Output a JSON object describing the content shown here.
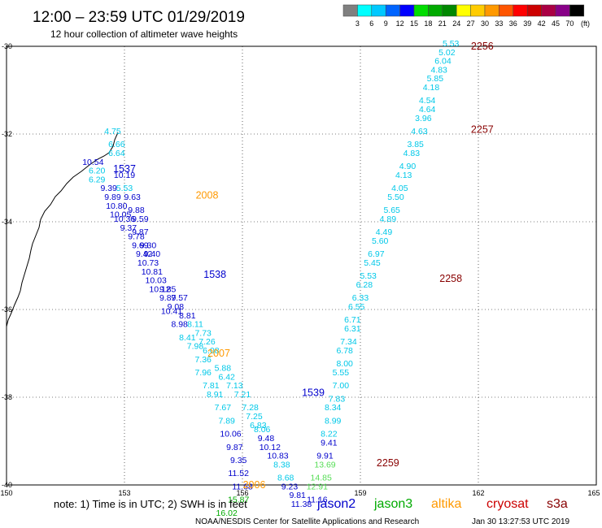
{
  "header": {
    "title": "12:00 – 23:59 UTC 01/29/2019",
    "subtitle": "12 hour collection of altimeter wave heights"
  },
  "colorbar": {
    "unit": "(ft)",
    "ticks": [
      "3",
      "6",
      "9",
      "12",
      "15",
      "18",
      "21",
      "24",
      "27",
      "30",
      "33",
      "36",
      "39",
      "42",
      "45",
      "70"
    ],
    "colors": [
      "#808080",
      "#00ffff",
      "#00c8ff",
      "#0064ff",
      "#0000ff",
      "#00dd00",
      "#00aa00",
      "#008800",
      "#ffff00",
      "#ffcc00",
      "#ff9900",
      "#ff5500",
      "#ff0000",
      "#cc0000",
      "#aa0044",
      "#880088",
      "#000000"
    ]
  },
  "axes": {
    "lat_labels": [
      "-30",
      "-32",
      "-34",
      "-36",
      "-38",
      "-40"
    ],
    "lon_labels": [
      "150",
      "153",
      "156",
      "159",
      "162",
      "165"
    ]
  },
  "note": "note: 1) Time is in UTC; 2) SWH is in feet",
  "legend": [
    {
      "name": "jason2",
      "color": "#0000cc"
    },
    {
      "name": "jason3",
      "color": "#00aa00"
    },
    {
      "name": "altika",
      "color": "#ff9900"
    },
    {
      "name": "cryosat",
      "color": "#cc0000"
    },
    {
      "name": "s3a",
      "color": "#880000"
    }
  ],
  "footer": {
    "credit": "NOAA/NESDIS Center for Satellite Applications and Research",
    "timestamp": "Jan 30 13:27:53 UTC 2019"
  },
  "pass_labels": [
    {
      "text": "2256",
      "lon": 162.1,
      "lat": -30.0,
      "sat": "s3a"
    },
    {
      "text": "2257",
      "lon": 162.1,
      "lat": -31.9,
      "sat": "s3a"
    },
    {
      "text": "2258",
      "lon": 161.3,
      "lat": -35.3,
      "sat": "s3a"
    },
    {
      "text": "2259",
      "lon": 159.7,
      "lat": -39.5,
      "sat": "s3a"
    },
    {
      "text": "1537",
      "lon": 153.0,
      "lat": -32.8,
      "sat": "jason2"
    },
    {
      "text": "1538",
      "lon": 155.3,
      "lat": -35.2,
      "sat": "jason2"
    },
    {
      "text": "1539",
      "lon": 157.8,
      "lat": -37.9,
      "sat": "jason2"
    },
    {
      "text": "2008",
      "lon": 155.1,
      "lat": -33.4,
      "sat": "altika"
    },
    {
      "text": "2007",
      "lon": 155.4,
      "lat": -37.0,
      "sat": "altika"
    },
    {
      "text": "2006",
      "lon": 156.3,
      "lat": -40.0,
      "sat": "altika"
    }
  ],
  "tracks": [
    {
      "name": "s3a-east",
      "points": [
        {
          "v": "5.53",
          "lat": -30.0,
          "lon": 161.3,
          "color": "#00c8e8"
        },
        {
          "v": "5.02",
          "lat": -30.2,
          "lon": 161.2,
          "color": "#00c8e8"
        },
        {
          "v": "6.04",
          "lat": -30.4,
          "lon": 161.1,
          "color": "#00c8e8"
        },
        {
          "v": "4.83",
          "lat": -30.6,
          "lon": 161.0,
          "color": "#00c8e8"
        },
        {
          "v": "5.85",
          "lat": -30.8,
          "lon": 160.9,
          "color": "#00c8e8"
        },
        {
          "v": "4.18",
          "lat": -31.0,
          "lon": 160.8,
          "color": "#00c8e8"
        },
        {
          "v": "4.54",
          "lat": -31.3,
          "lon": 160.7,
          "color": "#00c8e8"
        },
        {
          "v": "4.64",
          "lat": -31.5,
          "lon": 160.7,
          "color": "#00c8e8"
        },
        {
          "v": "3.96",
          "lat": -31.7,
          "lon": 160.6,
          "color": "#00c8e8"
        },
        {
          "v": "4.63",
          "lat": -32.0,
          "lon": 160.5,
          "color": "#00c8e8"
        },
        {
          "v": "3.85",
          "lat": -32.3,
          "lon": 160.4,
          "color": "#00c8e8"
        },
        {
          "v": "4.83",
          "lat": -32.5,
          "lon": 160.3,
          "color": "#00c8e8"
        },
        {
          "v": "4.90",
          "lat": -32.8,
          "lon": 160.2,
          "color": "#00c8e8"
        },
        {
          "v": "4.13",
          "lat": -33.0,
          "lon": 160.1,
          "color": "#00c8e8"
        },
        {
          "v": "4.05",
          "lat": -33.3,
          "lon": 160.0,
          "color": "#00c8e8"
        },
        {
          "v": "5.50",
          "lat": -33.5,
          "lon": 159.9,
          "color": "#00c8e8"
        },
        {
          "v": "5.65",
          "lat": -33.8,
          "lon": 159.8,
          "color": "#00c8e8"
        },
        {
          "v": "4.89",
          "lat": -34.0,
          "lon": 159.7,
          "color": "#00c8e8"
        },
        {
          "v": "4.49",
          "lat": -34.3,
          "lon": 159.6,
          "color": "#00c8e8"
        },
        {
          "v": "5.60",
          "lat": -34.5,
          "lon": 159.5,
          "color": "#00c8e8"
        },
        {
          "v": "6.97",
          "lat": -34.8,
          "lon": 159.4,
          "color": "#00c8e8"
        },
        {
          "v": "5.45",
          "lat": -35.0,
          "lon": 159.3,
          "color": "#00c8e8"
        },
        {
          "v": "5.53",
          "lat": -35.3,
          "lon": 159.2,
          "color": "#00c8e8"
        },
        {
          "v": "6.28",
          "lat": -35.5,
          "lon": 159.1,
          "color": "#00c8e8"
        },
        {
          "v": "6.33",
          "lat": -35.8,
          "lon": 159.0,
          "color": "#00c8e8"
        },
        {
          "v": "6.55",
          "lat": -36.0,
          "lon": 158.9,
          "color": "#00c8e8"
        },
        {
          "v": "6.71",
          "lat": -36.3,
          "lon": 158.8,
          "color": "#00c8e8"
        },
        {
          "v": "6.31",
          "lat": -36.5,
          "lon": 158.8,
          "color": "#00c8e8"
        },
        {
          "v": "7.34",
          "lat": -36.8,
          "lon": 158.7,
          "color": "#00c8e8"
        },
        {
          "v": "6.78",
          "lat": -37.0,
          "lon": 158.6,
          "color": "#00c8e8"
        },
        {
          "v": "8.00",
          "lat": -37.3,
          "lon": 158.6,
          "color": "#00c8e8"
        },
        {
          "v": "5.55",
          "lat": -37.5,
          "lon": 158.5,
          "color": "#00c8e8"
        },
        {
          "v": "7.00",
          "lat": -37.8,
          "lon": 158.5,
          "color": "#00c8e8"
        },
        {
          "v": "7.83",
          "lat": -38.1,
          "lon": 158.4,
          "color": "#00c8e8"
        },
        {
          "v": "8.34",
          "lat": -38.3,
          "lon": 158.3,
          "color": "#00c8e8"
        },
        {
          "v": "8.99",
          "lat": -38.6,
          "lon": 158.3,
          "color": "#00c8e8"
        },
        {
          "v": "8.22",
          "lat": -38.9,
          "lon": 158.2,
          "color": "#00c8e8"
        },
        {
          "v": "9.41",
          "lat": -39.1,
          "lon": 158.2,
          "color": "#0000cc"
        },
        {
          "v": "9.91",
          "lat": -39.4,
          "lon": 158.1,
          "color": "#0000cc"
        },
        {
          "v": "13.69",
          "lat": -39.6,
          "lon": 158.1,
          "color": "#55dd55"
        },
        {
          "v": "14.85",
          "lat": -39.9,
          "lon": 158.0,
          "color": "#55dd55"
        },
        {
          "v": "12.91",
          "lat": -40.1,
          "lon": 157.9,
          "color": "#55dd55"
        },
        {
          "v": "11.16",
          "lat": -40.4,
          "lon": 157.9,
          "color": "#0000cc"
        }
      ]
    },
    {
      "name": "jason2-west",
      "points": [
        {
          "v": "4.75",
          "lat": -32.0,
          "lon": 152.7,
          "color": "#00c8e8"
        },
        {
          "v": "6.66",
          "lat": -32.3,
          "lon": 152.8,
          "color": "#00c8e8"
        },
        {
          "v": "6.64",
          "lat": -32.5,
          "lon": 152.8,
          "color": "#00c8e8"
        },
        {
          "v": "10.54",
          "lat": -32.7,
          "lon": 152.2,
          "color": "#0000cc"
        },
        {
          "v": "6.20",
          "lat": -32.9,
          "lon": 152.3,
          "color": "#00c8e8"
        },
        {
          "v": "10.19",
          "lat": -33.0,
          "lon": 153.0,
          "color": "#0000cc"
        },
        {
          "v": "6.29",
          "lat": -33.1,
          "lon": 152.3,
          "color": "#00c8e8"
        },
        {
          "v": "9.39",
          "lat": -33.3,
          "lon": 152.6,
          "color": "#0000cc"
        },
        {
          "v": "5.53",
          "lat": -33.3,
          "lon": 153.0,
          "color": "#00c8e8"
        },
        {
          "v": "9.89",
          "lat": -33.5,
          "lon": 152.7,
          "color": "#0000cc"
        },
        {
          "v": "9.63",
          "lat": -33.5,
          "lon": 153.2,
          "color": "#0000cc"
        },
        {
          "v": "10.80",
          "lat": -33.7,
          "lon": 152.8,
          "color": "#0000cc"
        },
        {
          "v": "9.88",
          "lat": -33.8,
          "lon": 153.3,
          "color": "#0000cc"
        },
        {
          "v": "10.05",
          "lat": -33.9,
          "lon": 152.9,
          "color": "#0000cc"
        },
        {
          "v": "10.36",
          "lat": -34.0,
          "lon": 153.0,
          "color": "#0000cc"
        },
        {
          "v": "9.59",
          "lat": -34.0,
          "lon": 153.4,
          "color": "#0000cc"
        },
        {
          "v": "9.37",
          "lat": -34.2,
          "lon": 153.1,
          "color": "#0000cc"
        },
        {
          "v": "9.87",
          "lat": -34.3,
          "lon": 153.4,
          "color": "#0000cc"
        },
        {
          "v": "9.78",
          "lat": -34.4,
          "lon": 153.3,
          "color": "#0000cc"
        },
        {
          "v": "9.69",
          "lat": -34.6,
          "lon": 153.4,
          "color": "#0000cc"
        },
        {
          "v": "9.30",
          "lat": -34.6,
          "lon": 153.6,
          "color": "#0000cc"
        },
        {
          "v": "9.42",
          "lat": -34.8,
          "lon": 153.5,
          "color": "#0000cc"
        },
        {
          "v": "9.40",
          "lat": -34.8,
          "lon": 153.7,
          "color": "#0000cc"
        },
        {
          "v": "10.73",
          "lat": -35.0,
          "lon": 153.6,
          "color": "#0000cc"
        },
        {
          "v": "10.81",
          "lat": -35.2,
          "lon": 153.7,
          "color": "#0000cc"
        },
        {
          "v": "10.03",
          "lat": -35.4,
          "lon": 153.8,
          "color": "#0000cc"
        },
        {
          "v": "10.12",
          "lat": -35.6,
          "lon": 153.9,
          "color": "#0000cc"
        },
        {
          "v": "9.85",
          "lat": -35.6,
          "lon": 154.1,
          "color": "#0000cc"
        },
        {
          "v": "9.87",
          "lat": -35.8,
          "lon": 154.1,
          "color": "#0000cc"
        },
        {
          "v": "9.57",
          "lat": -35.8,
          "lon": 154.4,
          "color": "#0000cc"
        },
        {
          "v": "9.08",
          "lat": -36.0,
          "lon": 154.3,
          "color": "#0000cc"
        },
        {
          "v": "10.41",
          "lat": -36.1,
          "lon": 154.2,
          "color": "#0000cc"
        },
        {
          "v": "8.81",
          "lat": -36.2,
          "lon": 154.6,
          "color": "#0000cc"
        },
        {
          "v": "8.98",
          "lat": -36.4,
          "lon": 154.4,
          "color": "#0000cc"
        },
        {
          "v": "8.11",
          "lat": -36.4,
          "lon": 154.8,
          "color": "#00c8e8"
        }
      ]
    },
    {
      "name": "jason2-mid",
      "points": [
        {
          "v": "7.73",
          "lat": -36.6,
          "lon": 155.0,
          "color": "#00c8e8"
        },
        {
          "v": "8.41",
          "lat": -36.7,
          "lon": 154.6,
          "color": "#00c8e8"
        },
        {
          "v": "7.26",
          "lat": -36.8,
          "lon": 155.1,
          "color": "#00c8e8"
        },
        {
          "v": "7.98",
          "lat": -36.9,
          "lon": 154.8,
          "color": "#00c8e8"
        },
        {
          "v": "6.08",
          "lat": -37.0,
          "lon": 155.2,
          "color": "#00c8e8"
        },
        {
          "v": "7.36",
          "lat": -37.2,
          "lon": 155.0,
          "color": "#00c8e8"
        },
        {
          "v": "5.88",
          "lat": -37.4,
          "lon": 155.5,
          "color": "#00c8e8"
        },
        {
          "v": "7.96",
          "lat": -37.5,
          "lon": 155.0,
          "color": "#00c8e8"
        },
        {
          "v": "6.42",
          "lat": -37.6,
          "lon": 155.6,
          "color": "#00c8e8"
        },
        {
          "v": "7.81",
          "lat": -37.8,
          "lon": 155.2,
          "color": "#00c8e8"
        },
        {
          "v": "7.13",
          "lat": -37.8,
          "lon": 155.8,
          "color": "#00c8e8"
        },
        {
          "v": "8.91",
          "lat": -38.0,
          "lon": 155.3,
          "color": "#00c8e8"
        },
        {
          "v": "7.21",
          "lat": -38.0,
          "lon": 156.0,
          "color": "#00c8e8"
        },
        {
          "v": "7.67",
          "lat": -38.3,
          "lon": 155.5,
          "color": "#00c8e8"
        },
        {
          "v": "7.28",
          "lat": -38.3,
          "lon": 156.2,
          "color": "#00c8e8"
        },
        {
          "v": "7.25",
          "lat": -38.5,
          "lon": 156.3,
          "color": "#00c8e8"
        },
        {
          "v": "7.89",
          "lat": -38.6,
          "lon": 155.6,
          "color": "#00c8e8"
        },
        {
          "v": "6.83",
          "lat": -38.7,
          "lon": 156.4,
          "color": "#00c8e8"
        },
        {
          "v": "8.06",
          "lat": -38.8,
          "lon": 156.5,
          "color": "#00c8e8"
        },
        {
          "v": "10.06",
          "lat": -38.9,
          "lon": 155.7,
          "color": "#0000cc"
        },
        {
          "v": "9.48",
          "lat": -39.0,
          "lon": 156.6,
          "color": "#0000cc"
        },
        {
          "v": "9.87",
          "lat": -39.2,
          "lon": 155.8,
          "color": "#0000cc"
        },
        {
          "v": "10.12",
          "lat": -39.2,
          "lon": 156.7,
          "color": "#0000cc"
        },
        {
          "v": "10.83",
          "lat": -39.4,
          "lon": 156.9,
          "color": "#0000cc"
        },
        {
          "v": "9.35",
          "lat": -39.5,
          "lon": 155.9,
          "color": "#0000cc"
        },
        {
          "v": "8.38",
          "lat": -39.6,
          "lon": 157.0,
          "color": "#00c8e8"
        },
        {
          "v": "11.52",
          "lat": -39.8,
          "lon": 155.9,
          "color": "#0000cc"
        },
        {
          "v": "8.68",
          "lat": -39.9,
          "lon": 157.1,
          "color": "#00c8e8"
        },
        {
          "v": "11.68",
          "lat": -40.1,
          "lon": 156.0,
          "color": "#0000cc"
        },
        {
          "v": "9.23",
          "lat": -40.1,
          "lon": 157.2,
          "color": "#0000cc"
        },
        {
          "v": "9.81",
          "lat": -40.3,
          "lon": 157.4,
          "color": "#0000cc"
        },
        {
          "v": "15.87",
          "lat": -40.4,
          "lon": 155.9,
          "color": "#00aa00"
        },
        {
          "v": "11.38",
          "lat": -40.5,
          "lon": 157.5,
          "color": "#0000cc"
        },
        {
          "v": "16.02",
          "lat": -40.7,
          "lon": 155.6,
          "color": "#00aa00"
        }
      ]
    }
  ]
}
